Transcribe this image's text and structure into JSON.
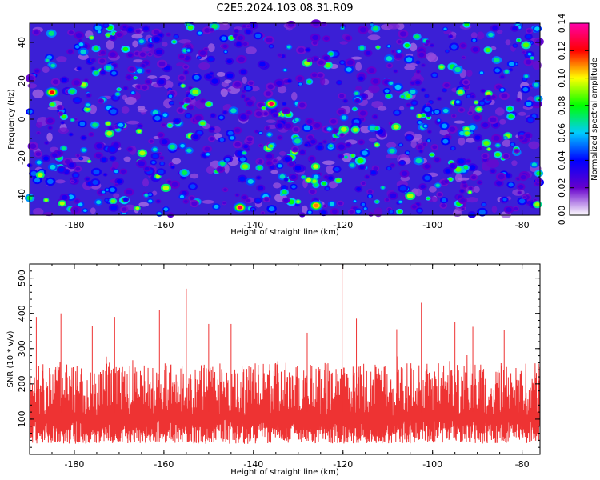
{
  "title": "C2E5.2024.103.08.31.R09",
  "chart_data": [
    {
      "type": "heatmap",
      "xlabel": "Height of straight line (km)",
      "ylabel": "Frequency (Hz)",
      "xlim": [
        -190,
        -76
      ],
      "ylim": [
        -50,
        50
      ],
      "xticks": [
        "-180",
        "-160",
        "-140",
        "-120",
        "-100",
        "-80"
      ],
      "yticks": [
        "-40",
        "-20",
        "0",
        "20",
        "40"
      ],
      "colorbar": {
        "label": "Normalized spectral amplitude",
        "range": [
          0,
          0.14
        ],
        "ticks": [
          "0.00",
          "0.02",
          "0.04",
          "0.06",
          "0.08",
          "0.10",
          "0.12",
          "0.14"
        ]
      },
      "colormap": [
        "#ffffff",
        "#6600cc",
        "#0000ff",
        "#00ccff",
        "#00ff00",
        "#ffff00",
        "#ff0000",
        "#ff00aa"
      ],
      "notable_peaks": [
        {
          "x": -136,
          "y": 8,
          "value": 0.13
        },
        {
          "x": -143,
          "y": -46,
          "value": 0.13
        },
        {
          "x": -185,
          "y": 14,
          "value": 0.12
        },
        {
          "x": -126,
          "y": -45,
          "value": 0.11
        }
      ]
    },
    {
      "type": "line",
      "xlabel": "Height of straight line (km)",
      "ylabel": "SNR (10 * v/v)",
      "xlim": [
        -190,
        -76
      ],
      "ylim": [
        0,
        540
      ],
      "xticks": [
        "-180",
        "-160",
        "-140",
        "-120",
        "-100",
        "-80"
      ],
      "yticks": [
        "100",
        "200",
        "300",
        "400",
        "500"
      ],
      "series": [
        {
          "color": "#ee3333",
          "baseline_band": [
            30,
            260
          ],
          "peaks": [
            {
              "x": -120.2,
              "y": 540
            },
            {
              "x": -155,
              "y": 470
            },
            {
              "x": -102.5,
              "y": 430
            },
            {
              "x": -161,
              "y": 410
            },
            {
              "x": -183,
              "y": 400
            },
            {
              "x": -171,
              "y": 390
            },
            {
              "x": -188.5,
              "y": 390
            },
            {
              "x": -117,
              "y": 385
            },
            {
              "x": -95,
              "y": 375
            },
            {
              "x": -145,
              "y": 370
            },
            {
              "x": -150,
              "y": 370
            },
            {
              "x": -176,
              "y": 365
            },
            {
              "x": -91,
              "y": 362
            },
            {
              "x": -108,
              "y": 355
            },
            {
              "x": -84,
              "y": 352
            },
            {
              "x": -128,
              "y": 345
            }
          ]
        }
      ]
    }
  ]
}
